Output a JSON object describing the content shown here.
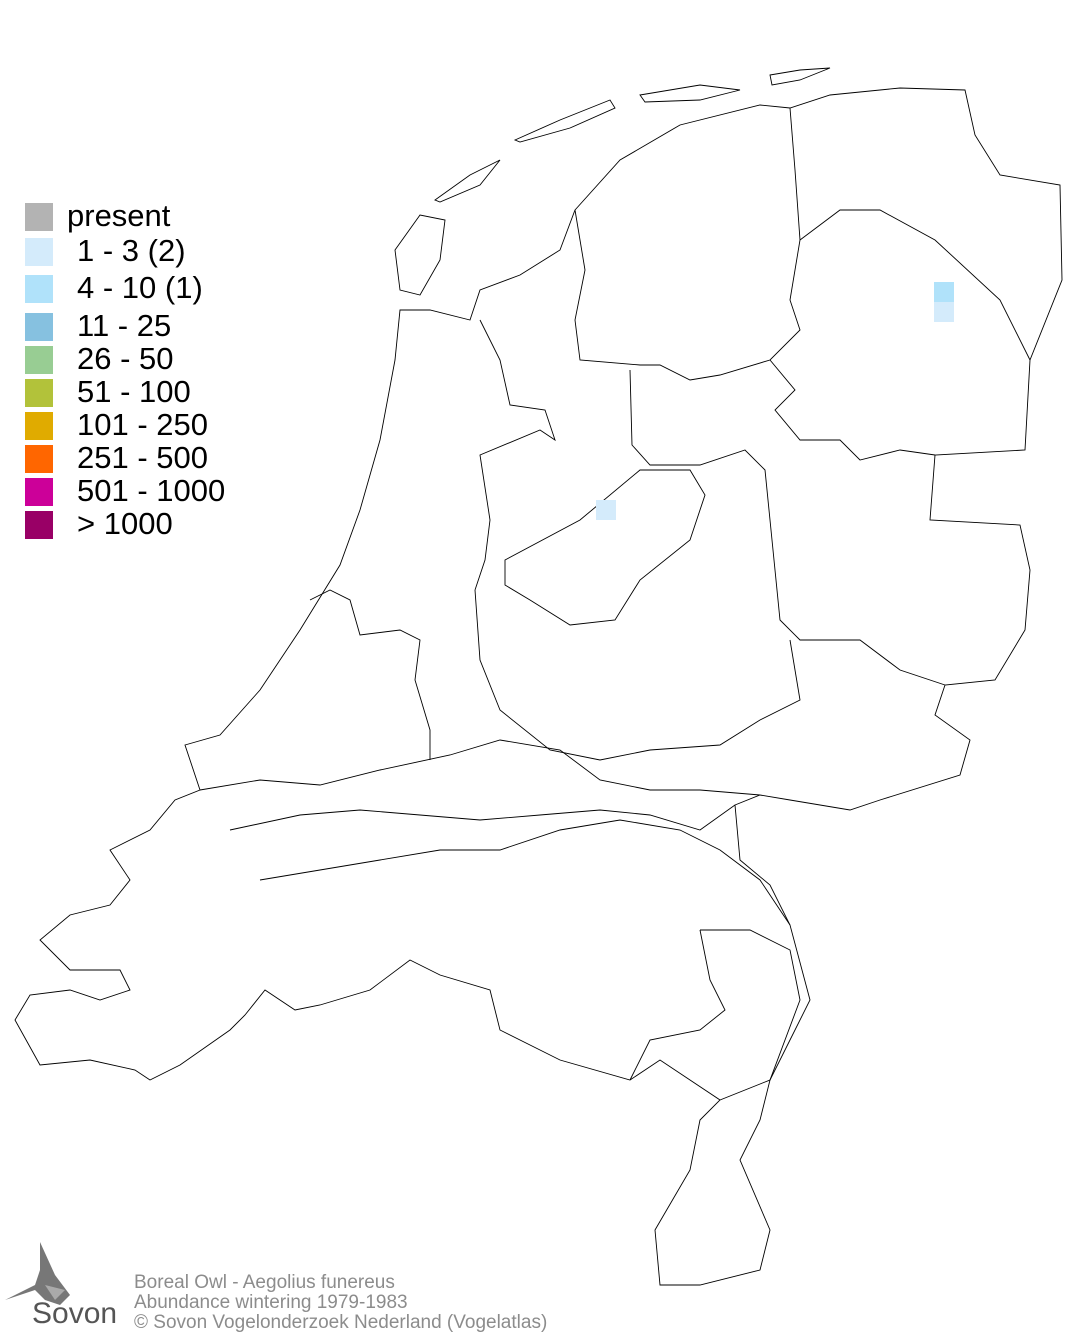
{
  "legend": [
    {
      "label": "present",
      "color": "#b3b3b3"
    },
    {
      "label": "1 - 3 (2)",
      "color": "#d4ebfb"
    },
    {
      "label": "4 - 10 (1)",
      "color": "#b0e2fa"
    },
    {
      "label": "11 - 25",
      "color": "#86c1e0"
    },
    {
      "label": "26 - 50",
      "color": "#98cd93"
    },
    {
      "label": "51 - 100",
      "color": "#b2c23a"
    },
    {
      "label": "101 - 250",
      "color": "#e0ab00"
    },
    {
      "label": "251 - 500",
      "color": "#ff6600"
    },
    {
      "label": "501 - 1000",
      "color": "#cc0099"
    },
    {
      "label": "> 1000",
      "color": "#990066"
    }
  ],
  "cells": [
    {
      "location": "Drenthe",
      "class": "4 - 10"
    },
    {
      "location": "Drenthe",
      "class": "1 - 3"
    },
    {
      "location": "Flevoland",
      "class": "1 - 3"
    }
  ],
  "footer": {
    "species": "Boreal Owl - Aegolius funereus",
    "subtitle": "Abundance wintering 1979-1983",
    "copyright": "© Sovon Vogelonderzoek Nederland (Vogelatlas)"
  },
  "logo": {
    "text": "Sovon"
  }
}
